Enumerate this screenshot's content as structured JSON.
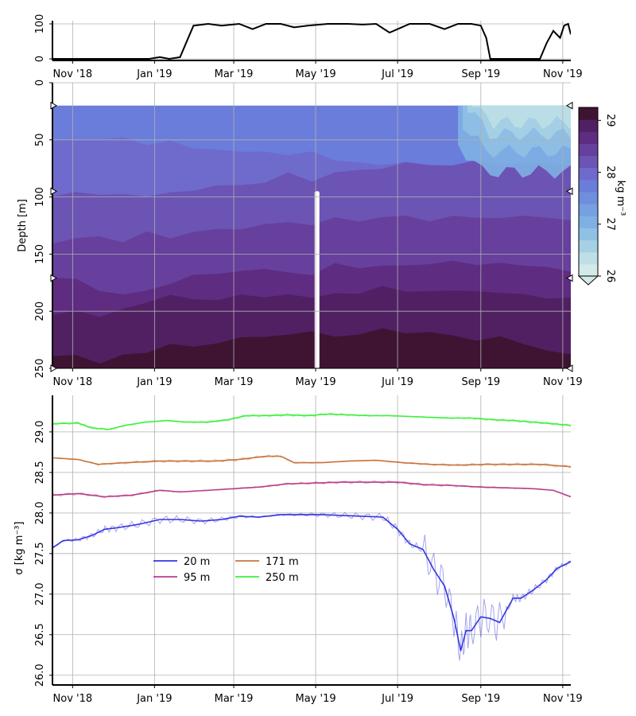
{
  "chart_data": [
    {
      "type": "line",
      "panel": "top",
      "yticks": [
        "0",
        "100"
      ],
      "xticks": [
        "Nov '18",
        "Jan '19",
        "Mar '19",
        "May '19",
        "Jul '19",
        "Sep '19",
        "Nov '19"
      ],
      "ylim": [
        0,
        100
      ],
      "xlim": [
        "2018-10-17",
        "2019-11-07"
      ],
      "grid": true,
      "color": "#000000",
      "series": [
        {
          "x": [
            "2018-10-17",
            "2018-12-15",
            "2018-12-28",
            "2019-01-05",
            "2019-01-12",
            "2019-01-20",
            "2019-01-30",
            "2019-02-10",
            "2019-02-20",
            "2019-03-05",
            "2019-03-15",
            "2019-03-25",
            "2019-04-05",
            "2019-04-15",
            "2019-04-25",
            "2019-05-10",
            "2019-05-25",
            "2019-06-05",
            "2019-06-15",
            "2019-06-25",
            "2019-07-10",
            "2019-07-25",
            "2019-08-05",
            "2019-08-15",
            "2019-08-25",
            "2019-09-01",
            "2019-09-05",
            "2019-09-08",
            "2019-09-15",
            "2019-09-30",
            "2019-10-15",
            "2019-10-20",
            "2019-10-25",
            "2019-10-30",
            "2019-11-02",
            "2019-11-05",
            "2019-11-07"
          ],
          "y": [
            0,
            0,
            0,
            5,
            0,
            5,
            95,
            100,
            95,
            100,
            85,
            100,
            100,
            90,
            95,
            100,
            100,
            98,
            100,
            75,
            100,
            100,
            85,
            100,
            100,
            95,
            60,
            0,
            0,
            0,
            0,
            45,
            80,
            60,
            95,
            100,
            70
          ]
        }
      ]
    },
    {
      "type": "heatmap",
      "panel": "middle",
      "ylabel": "Depth [m]",
      "yticks": [
        "0",
        "50",
        "100",
        "150",
        "200",
        "250"
      ],
      "xticks": [
        "Nov '18",
        "Jan '19",
        "Mar '19",
        "May '19",
        "Jul '19",
        "Sep '19",
        "Nov '19"
      ],
      "ylim": [
        250,
        0
      ],
      "xlim": [
        "2018-10-17",
        "2019-11-07"
      ],
      "data_depth_range": [
        20,
        250
      ],
      "grid": true,
      "colorbar": {
        "label": "kg m⁻³",
        "ticks": [
          "26",
          "27",
          "28",
          "29"
        ],
        "range": [
          26,
          29.25
        ],
        "levels": [
          26.0,
          26.25,
          26.5,
          26.75,
          27.0,
          27.25,
          27.5,
          27.75,
          28.0,
          28.25,
          28.5,
          28.75,
          29.0,
          29.25
        ],
        "colors": [
          "#d4e9e9",
          "#bedfe6",
          "#a6d0e4",
          "#90c0e3",
          "#7fb0e3",
          "#76a0e0",
          "#6f8ede",
          "#6b7dda",
          "#6f6bcc",
          "#6c54b4",
          "#66409c",
          "#5e2c80",
          "#512063",
          "#3e1432"
        ],
        "extend": "min"
      },
      "gap_date": "2019-05-02",
      "marker_depths": [
        20,
        95,
        171,
        250
      ],
      "contour_boundaries": [
        {
          "level": 28.0,
          "depths": [
            50,
            49,
            52,
            48,
            55,
            52,
            56,
            58,
            60,
            58,
            64,
            60,
            68,
            72,
            72,
            70,
            74,
            80,
            80,
            82,
            85,
            85,
            88
          ]
        },
        {
          "level": 28.25,
          "depths": [
            98,
            95,
            98,
            95,
            100,
            96,
            94,
            92,
            90,
            88,
            80,
            85,
            78,
            76,
            73,
            70,
            72,
            72,
            70,
            72,
            71,
            72,
            70
          ]
        },
        {
          "level": 28.5,
          "depths": [
            140,
            138,
            135,
            140,
            132,
            135,
            130,
            128,
            126,
            124,
            122,
            124,
            120,
            122,
            118,
            118,
            120,
            116,
            118,
            116,
            117,
            118,
            120
          ]
        },
        {
          "level": 28.75,
          "depths": [
            170,
            172,
            180,
            185,
            182,
            175,
            170,
            168,
            165,
            165,
            165,
            168,
            158,
            160,
            160,
            160,
            158,
            158,
            160,
            158,
            162,
            160,
            165
          ]
        },
        {
          "level": 29.0,
          "depths": [
            205,
            200,
            205,
            200,
            192,
            185,
            190,
            188,
            185,
            188,
            184,
            190,
            185,
            185,
            180,
            182,
            182,
            182,
            180,
            184,
            185,
            188,
            190
          ]
        },
        {
          "level": 29.25,
          "depths": [
            240,
            236,
            245,
            238,
            235,
            230,
            232,
            228,
            225,
            222,
            220,
            218,
            220,
            220,
            215,
            218,
            220,
            222,
            226,
            224,
            228,
            234,
            238
          ]
        }
      ]
    },
    {
      "type": "line",
      "panel": "bottom",
      "ylabel": "σ [kg m⁻³]",
      "yticks": [
        "26.0",
        "26.5",
        "27.0",
        "27.5",
        "28.0",
        "28.5",
        "29.0"
      ],
      "xticks": [
        "Nov '18",
        "Jan '19",
        "Mar '19",
        "May '19",
        "Jul '19",
        "Sep '19",
        "Nov '19"
      ],
      "ylim": [
        25.88,
        29.45
      ],
      "xlim": [
        "2018-10-17",
        "2019-11-07"
      ],
      "grid": true,
      "legend": {
        "placement": "center-left",
        "columns": 2
      },
      "series": [
        {
          "name": "20 m",
          "color": "#3535e0",
          "x": [
            "2018-10-17",
            "2018-10-25",
            "2018-11-05",
            "2018-11-15",
            "2018-11-25",
            "2018-12-05",
            "2018-12-20",
            "2019-01-05",
            "2019-01-20",
            "2019-02-05",
            "2019-02-20",
            "2019-03-05",
            "2019-03-20",
            "2019-04-05",
            "2019-04-20",
            "2019-05-05",
            "2019-05-20",
            "2019-06-05",
            "2019-06-20",
            "2019-07-01",
            "2019-07-10",
            "2019-07-20",
            "2019-07-28",
            "2019-08-05",
            "2019-08-12",
            "2019-08-17",
            "2019-08-21",
            "2019-08-25",
            "2019-09-01",
            "2019-09-08",
            "2019-09-15",
            "2019-09-25",
            "2019-10-01",
            "2019-10-10",
            "2019-10-20",
            "2019-10-28",
            "2019-11-07"
          ],
          "y": [
            27.57,
            27.66,
            27.67,
            27.72,
            27.8,
            27.82,
            27.86,
            27.92,
            27.92,
            27.9,
            27.92,
            27.96,
            27.95,
            27.98,
            27.98,
            27.98,
            27.97,
            27.96,
            27.95,
            27.8,
            27.62,
            27.55,
            27.3,
            27.1,
            26.7,
            26.3,
            26.55,
            26.55,
            26.72,
            26.7,
            26.65,
            26.95,
            26.95,
            27.05,
            27.18,
            27.32,
            27.4
          ]
        },
        {
          "name": "95 m",
          "color": "#b83f8a",
          "x": [
            "2018-10-17",
            "2018-11-05",
            "2018-11-25",
            "2018-12-15",
            "2019-01-05",
            "2019-01-20",
            "2019-02-10",
            "2019-03-01",
            "2019-03-20",
            "2019-04-10",
            "2019-05-01",
            "2019-05-20",
            "2019-06-10",
            "2019-07-01",
            "2019-07-20",
            "2019-08-10",
            "2019-09-01",
            "2019-09-20",
            "2019-10-10",
            "2019-10-25",
            "2019-11-07"
          ],
          "y": [
            28.22,
            28.24,
            28.2,
            28.22,
            28.28,
            28.26,
            28.28,
            28.3,
            28.32,
            28.36,
            28.37,
            28.38,
            28.38,
            28.38,
            28.35,
            28.34,
            28.32,
            28.31,
            28.3,
            28.28,
            28.2
          ]
        },
        {
          "name": "171 m",
          "color": "#c8743c",
          "x": [
            "2018-10-17",
            "2018-11-05",
            "2018-11-20",
            "2018-12-10",
            "2019-01-05",
            "2019-01-25",
            "2019-02-15",
            "2019-03-05",
            "2019-03-25",
            "2019-04-05",
            "2019-04-15",
            "2019-05-05",
            "2019-05-25",
            "2019-06-15",
            "2019-07-05",
            "2019-07-25",
            "2019-08-15",
            "2019-09-05",
            "2019-09-25",
            "2019-10-15",
            "2019-11-07"
          ],
          "y": [
            28.68,
            28.66,
            28.6,
            28.62,
            28.64,
            28.64,
            28.64,
            28.66,
            28.7,
            28.7,
            28.62,
            28.62,
            28.64,
            28.65,
            28.62,
            28.6,
            28.59,
            28.6,
            28.6,
            28.6,
            28.57
          ]
        },
        {
          "name": "250 m",
          "color": "#3cf03c",
          "x": [
            "2018-10-17",
            "2018-11-05",
            "2018-11-15",
            "2018-11-28",
            "2018-12-10",
            "2018-12-25",
            "2019-01-10",
            "2019-01-25",
            "2019-02-10",
            "2019-02-25",
            "2019-03-10",
            "2019-03-25",
            "2019-04-10",
            "2019-04-25",
            "2019-05-10",
            "2019-05-25",
            "2019-06-10",
            "2019-06-25",
            "2019-07-10",
            "2019-07-25",
            "2019-08-10",
            "2019-08-25",
            "2019-09-10",
            "2019-09-25",
            "2019-10-10",
            "2019-10-25",
            "2019-11-07"
          ],
          "y": [
            29.1,
            29.11,
            29.05,
            29.03,
            29.08,
            29.12,
            29.14,
            29.12,
            29.12,
            29.15,
            29.2,
            29.2,
            29.21,
            29.2,
            29.22,
            29.21,
            29.2,
            29.2,
            29.19,
            29.18,
            29.17,
            29.17,
            29.15,
            29.14,
            29.12,
            29.1,
            29.08
          ]
        }
      ]
    }
  ]
}
